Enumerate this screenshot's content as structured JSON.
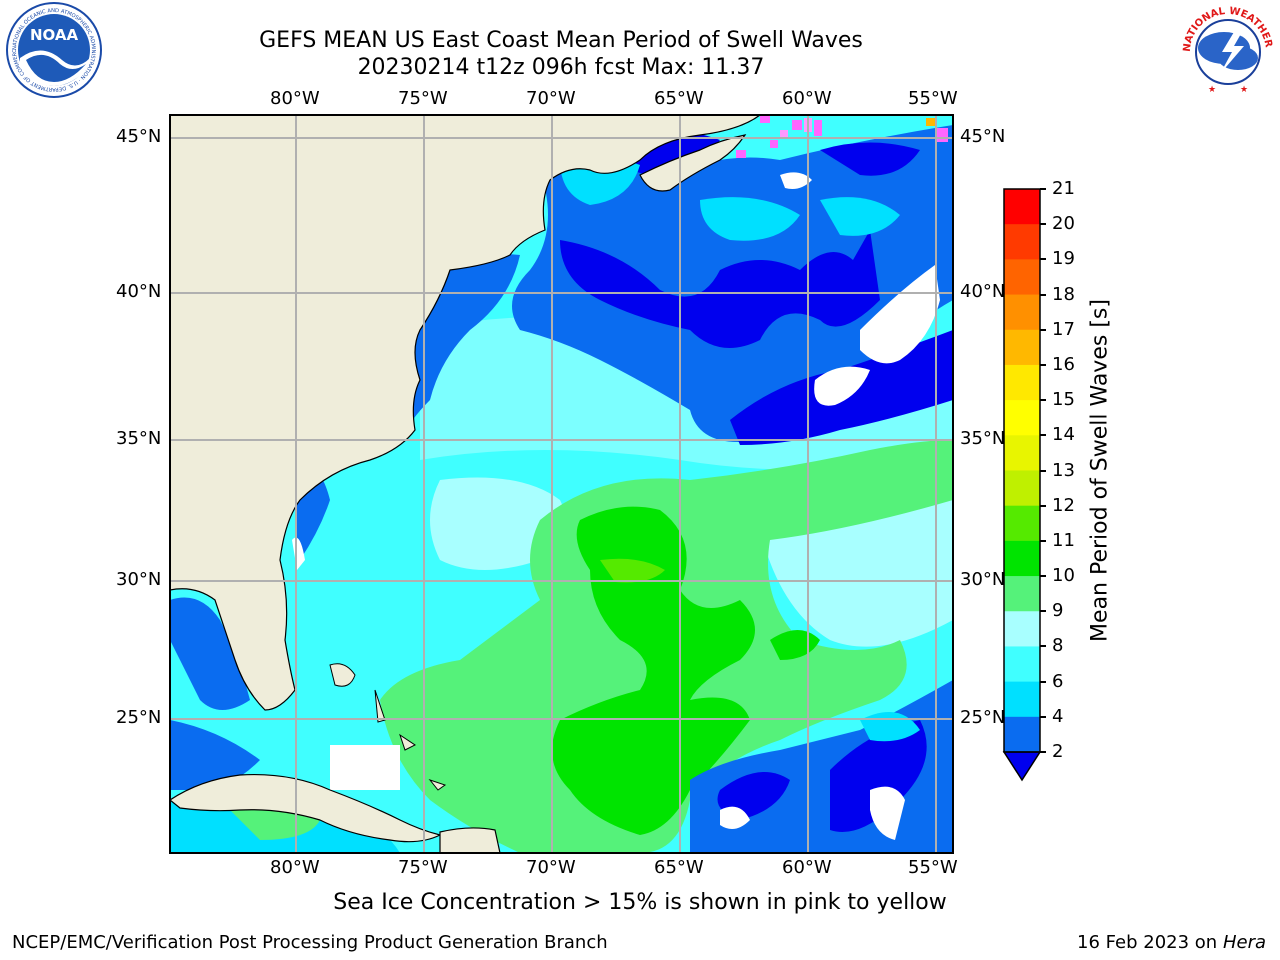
{
  "header": {
    "title_line1": "GEFS MEAN US East Coast Mean Period of Swell Waves",
    "title_line2": "20230214 t12z 096h fcst   Max: 11.37",
    "logo_left_text": "NOAA",
    "logo_left_ring_text": "NATIONAL OCEANIC AND ATMOSPHERIC ADMINISTRATION · U.S. DEPARTMENT OF COMMERCE",
    "logo_right_ring_text": "NATIONAL WEATHER SERVICE"
  },
  "map": {
    "lon_ticks": [
      "80°W",
      "75°W",
      "70°W",
      "65°W",
      "60°W",
      "55°W"
    ],
    "lat_ticks": [
      "45°N",
      "40°N",
      "35°N",
      "30°N",
      "25°N"
    ]
  },
  "colorbar": {
    "label": "Mean Period of Swell Waves [s]",
    "ticks": [
      "21",
      "20",
      "19",
      "18",
      "17",
      "16",
      "15",
      "14",
      "13",
      "12",
      "11",
      "10",
      "9",
      "8",
      "6",
      "4",
      "2"
    ],
    "colors": {
      "c2_4": "#0a6cf0",
      "c4_6": "#00e0ff",
      "c6_8": "#40ffff",
      "c8_9": "#a8ffff",
      "c9_10": "#55f27a",
      "c10_11": "#00e400",
      "c11_12": "#55ea00",
      "c12_13": "#bff000",
      "c13_14": "#e8f500",
      "c14_15": "#ffff00",
      "c15_16": "#ffe800",
      "c16_17": "#ffb800",
      "c17_18": "#ff9000",
      "c18_19": "#ff6400",
      "c19_20": "#ff3a00",
      "c20_21": "#ff0000",
      "under": "#0000ee"
    }
  },
  "footer": {
    "note": "Sea Ice Concentration > 15% is shown in pink to yellow",
    "org": "NCEP/EMC/Verification Post Processing Product Generation Branch",
    "date": "16 Feb 2023 on",
    "machine": "Hera"
  }
}
